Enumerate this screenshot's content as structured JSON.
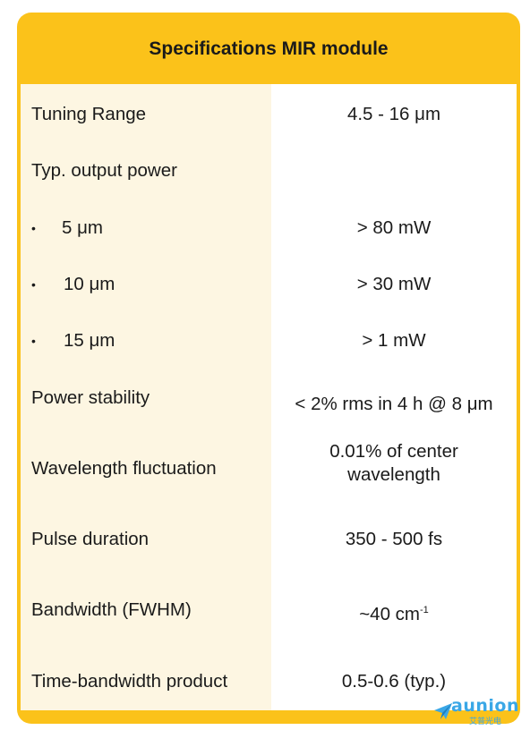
{
  "table": {
    "title": "Specifications MIR module",
    "rows": [
      {
        "label": "Tuning Range",
        "value": "4.5 - 16 μm"
      },
      {
        "label": "Typ. output power",
        "value": ""
      },
      {
        "bullet": "•",
        "label": "5 μm",
        "value": "> 80 mW"
      },
      {
        "bullet": "•",
        "label": "10 μm",
        "value": "> 30 mW"
      },
      {
        "bullet": "•",
        "label": "15 μm",
        "value": "> 1 mW"
      },
      {
        "label": "Power stability",
        "value": "< 2% rms in 4 h @ 8 μm"
      },
      {
        "label": "Wavelength fluctuation",
        "value": "0.01% of center wavelength"
      },
      {
        "label": "Pulse duration",
        "value": "350 - 500 fs"
      },
      {
        "label": "Bandwidth (FWHM)",
        "value": "~40 cm",
        "value_sup": "-1"
      },
      {
        "label": "Time-bandwidth product",
        "value": "0.5-0.6 (typ.)"
      }
    ]
  },
  "watermark": {
    "brand": "aunion",
    "subtitle": "艾普光电",
    "icon": "paper-plane-icon",
    "color": "#3aa7e6"
  },
  "colors": {
    "accent": "#fbc21a",
    "label_column": "#fdf6e2",
    "value_column": "#ffffff"
  }
}
